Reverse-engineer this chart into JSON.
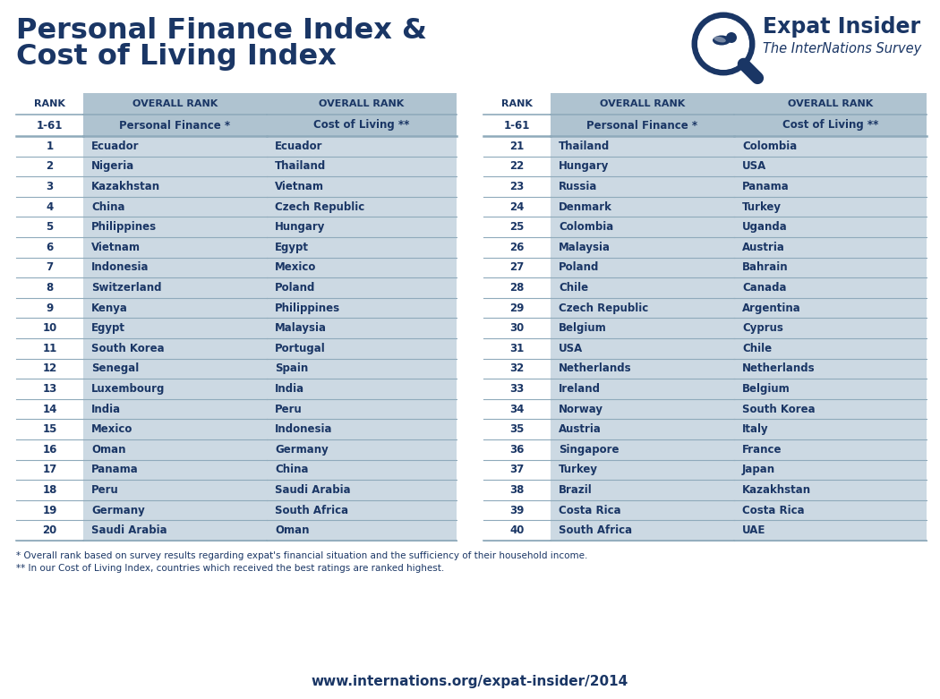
{
  "title_line1": "Personal Finance Index &",
  "title_line2": "Cost of Living Index",
  "title_color": "#1a3665",
  "background_color": "#ffffff",
  "table_bg_color": "#ccd9e3",
  "header_bg_color": "#afc3d0",
  "text_color": "#1a3665",
  "separator_color": "#8faabb",
  "rank_header": "RANK",
  "col1_header": "OVERALL RANK",
  "col1_subheader": "Personal Finance *",
  "col2_header": "OVERALL RANK",
  "col2_subheader": "Cost of Living **",
  "left_ranks": [
    1,
    2,
    3,
    4,
    5,
    6,
    7,
    8,
    9,
    10,
    11,
    12,
    13,
    14,
    15,
    16,
    17,
    18,
    19,
    20
  ],
  "left_pf": [
    "Ecuador",
    "Nigeria",
    "Kazakhstan",
    "China",
    "Philippines",
    "Vietnam",
    "Indonesia",
    "Switzerland",
    "Kenya",
    "Egypt",
    "South Korea",
    "Senegal",
    "Luxembourg",
    "India",
    "Mexico",
    "Oman",
    "Panama",
    "Peru",
    "Germany",
    "Saudi Arabia"
  ],
  "left_col": [
    "Ecuador",
    "Thailand",
    "Vietnam",
    "Czech Republic",
    "Hungary",
    "Egypt",
    "Mexico",
    "Poland",
    "Philippines",
    "Malaysia",
    "Portugal",
    "Spain",
    "India",
    "Peru",
    "Indonesia",
    "Germany",
    "China",
    "Saudi Arabia",
    "South Africa",
    "Oman"
  ],
  "right_ranks": [
    21,
    22,
    23,
    24,
    25,
    26,
    27,
    28,
    29,
    30,
    31,
    32,
    33,
    34,
    35,
    36,
    37,
    38,
    39,
    40
  ],
  "right_pf": [
    "Thailand",
    "Hungary",
    "Russia",
    "Denmark",
    "Colombia",
    "Malaysia",
    "Poland",
    "Chile",
    "Czech Republic",
    "Belgium",
    "USA",
    "Netherlands",
    "Ireland",
    "Norway",
    "Austria",
    "Singapore",
    "Turkey",
    "Brazil",
    "Costa Rica",
    "South Africa"
  ],
  "right_col": [
    "Colombia",
    "USA",
    "Panama",
    "Turkey",
    "Uganda",
    "Austria",
    "Bahrain",
    "Canada",
    "Argentina",
    "Cyprus",
    "Chile",
    "Netherlands",
    "Belgium",
    "South Korea",
    "Italy",
    "France",
    "Japan",
    "Kazakhstan",
    "Costa Rica",
    "UAE"
  ],
  "footnote1": "* Overall rank based on survey results regarding expat's financial situation and the sufficiency of their household income.",
  "footnote2": "** In our Cost of Living Index, countries which received the best ratings are ranked highest.",
  "website": "www.internations.org/expat-insider/2014",
  "logo_text1": "Expat Insider",
  "logo_text2": "The InterNations Survey"
}
